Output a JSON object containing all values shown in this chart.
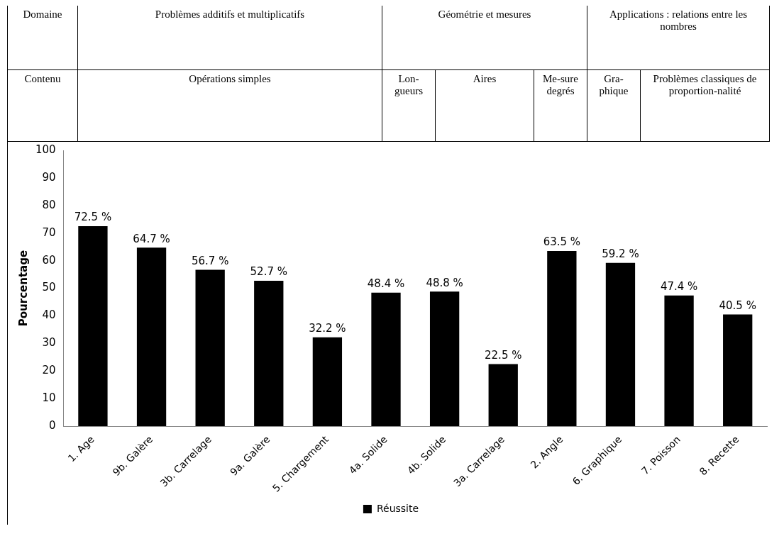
{
  "chart_data": {
    "type": "bar",
    "annotations": [
      "Domaine",
      "Problèmes additifs et multiplicatifs",
      "Géométrie et mesures",
      "Applications : relations entre les nombres",
      "Contenu",
      "Opérations simples",
      "Lon-gueurs",
      "Aires",
      "Me-sure degrés",
      "Gra-phique",
      "Problèmes classiques de proportion-nalité"
    ],
    "ylabel": "Pourcentage",
    "categories": [
      "1. Age",
      "9b. Galère",
      "3b. Carrelage",
      "9a. Galère",
      "5. Chargement",
      "4a. Solide",
      "4b. Solide",
      "3a. Carrelage",
      "2. Angle",
      "6. Graphique",
      "7. Poisson",
      "8. Recette"
    ],
    "series": [
      {
        "name": "Réussite",
        "color": "#000000",
        "values": [
          72.5,
          64.7,
          56.7,
          52.7,
          32.2,
          48.4,
          48.8,
          22.5,
          63.5,
          59.2,
          47.4,
          40.5
        ],
        "value_labels": [
          "72.5 %",
          "64.7 %",
          "56.7 %",
          "52.7 %",
          "32.2 %",
          "48.4 %",
          "48.8 %",
          "22.5 %",
          "63.5 %",
          "59.2 %",
          "47.4 %",
          "40.5 %"
        ]
      }
    ],
    "ylim": [
      0,
      100
    ],
    "yticks": [
      0,
      10,
      20,
      30,
      40,
      50,
      60,
      70,
      80,
      90,
      100
    ],
    "legend": "bottom"
  }
}
